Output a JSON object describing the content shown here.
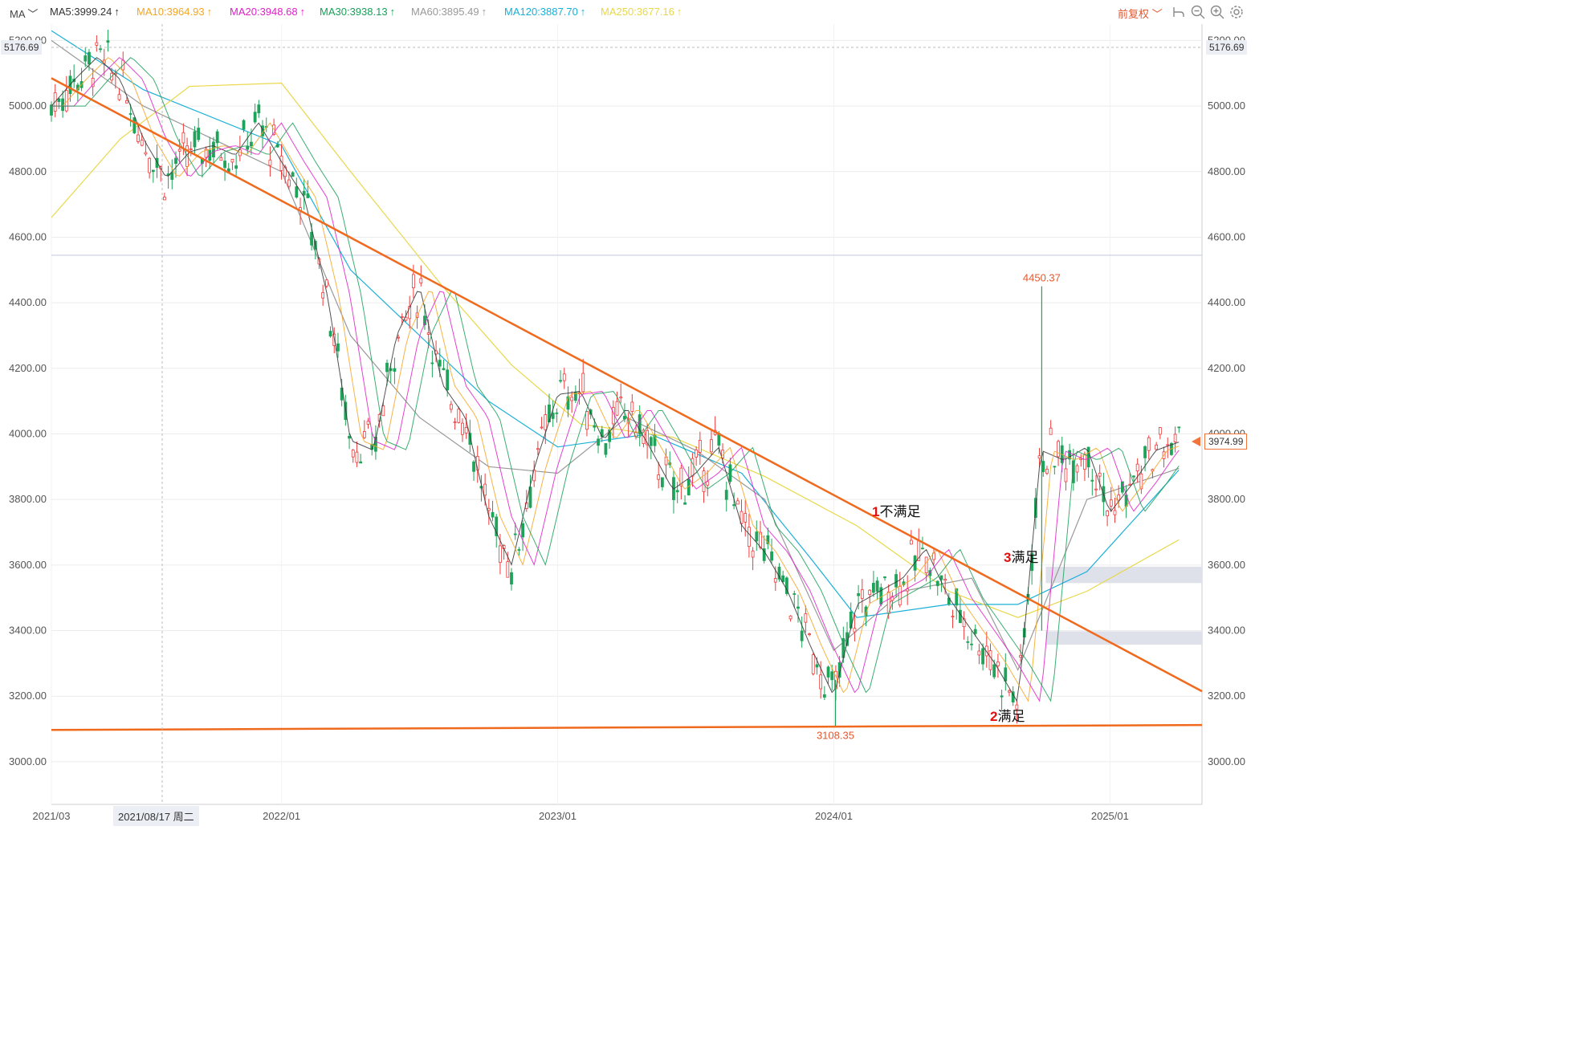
{
  "toolbar": {
    "ma_selector": "MA",
    "adjust_label": "前复权",
    "indicators": [
      {
        "text": "MA5:3999.24",
        "arrow": "↑",
        "color": "#333333"
      },
      {
        "text": "MA10:3964.93",
        "arrow": "↑",
        "color": "#f5a623"
      },
      {
        "text": "MA20:3948.68",
        "arrow": "↑",
        "color": "#e020c8"
      },
      {
        "text": "MA30:3938.13",
        "arrow": "↑",
        "color": "#18a058"
      },
      {
        "text": "MA60:3895.49",
        "arrow": "↑",
        "color": "#999999"
      },
      {
        "text": "MA120:3887.70",
        "arrow": "↑",
        "color": "#1ab0d8"
      },
      {
        "text": "MA250:3677.16",
        "arrow": "↑",
        "color": "#e8d84a"
      }
    ],
    "icons": [
      "undo-icon",
      "zoom-out-icon",
      "zoom-in-icon",
      "settings-icon"
    ]
  },
  "crosshair": {
    "price_label": "5176.69",
    "date_label": "2021/08/17 周二"
  },
  "current_price_label": "3974.99",
  "chart_data": {
    "type": "candlestick",
    "y_axis": {
      "ticks": [
        3000,
        3200,
        3400,
        3600,
        3800,
        4000,
        4200,
        4400,
        4600,
        4800,
        5000,
        5200
      ],
      "tick_labels": [
        "3000.00",
        "3200.00",
        "3400.00",
        "3600.00",
        "3800.00",
        "4000.00",
        "4200.00",
        "4400.00",
        "4600.00",
        "4800.00",
        "5000.00",
        "5200.00"
      ],
      "range": [
        2870,
        5250
      ]
    },
    "x_axis": {
      "tick_labels": [
        "2021/03",
        "2022/01",
        "2023/01",
        "2024/01",
        "2025/01"
      ],
      "range": [
        "2021-03",
        "2025-05"
      ]
    },
    "annotations": {
      "high": {
        "value": 4450.37,
        "label": "4450.37"
      },
      "low": {
        "value": 3108.35,
        "label": "3108.35"
      },
      "texts": [
        {
          "num": "1",
          "text": "不满足"
        },
        {
          "num": "2",
          "text": "满足"
        },
        {
          "num": "3",
          "text": "满足"
        }
      ]
    },
    "trend_lines": [
      {
        "name": "descending-resistance",
        "color": "#f06a1e",
        "points": [
          [
            "2021-03",
            5085
          ],
          [
            "2025-05",
            3215
          ]
        ]
      },
      {
        "name": "horizontal-support",
        "color": "#f06a1e",
        "points": [
          [
            "2021-03",
            3097
          ],
          [
            "2025-05",
            3112
          ]
        ]
      }
    ],
    "zones": [
      {
        "from": 3545,
        "to": 3595,
        "start": "2024-10"
      },
      {
        "from": 3357,
        "to": 3398,
        "start": "2024-10"
      }
    ],
    "reference_line": 4545,
    "close_path": [
      [
        "2021-03",
        5000
      ],
      [
        "2021-04",
        5080
      ],
      [
        "2021-05",
        5150
      ],
      [
        "2021-06",
        5080
      ],
      [
        "2021-07",
        4900
      ],
      [
        "2021-08",
        4780
      ],
      [
        "2021-09",
        4860
      ],
      [
        "2021-10",
        4880
      ],
      [
        "2021-11",
        4850
      ],
      [
        "2021-12",
        4950
      ],
      [
        "2022-01",
        4830
      ],
      [
        "2022-02",
        4720
      ],
      [
        "2022-03",
        4420
      ],
      [
        "2022-04",
        3980
      ],
      [
        "2022-05",
        3950
      ],
      [
        "2022-06",
        4300
      ],
      [
        "2022-07",
        4450
      ],
      [
        "2022-08",
        4150
      ],
      [
        "2022-09",
        4050
      ],
      [
        "2022-10",
        3750
      ],
      [
        "2022-11",
        3600
      ],
      [
        "2022-12",
        3900
      ],
      [
        "2023-01",
        4120
      ],
      [
        "2023-02",
        4130
      ],
      [
        "2023-03",
        3980
      ],
      [
        "2023-04",
        4080
      ],
      [
        "2023-05",
        3960
      ],
      [
        "2023-06",
        3830
      ],
      [
        "2023-07",
        3880
      ],
      [
        "2023-08",
        3960
      ],
      [
        "2023-09",
        3720
      ],
      [
        "2023-10",
        3640
      ],
      [
        "2023-11",
        3520
      ],
      [
        "2023-12",
        3350
      ],
      [
        "2024-01",
        3200
      ],
      [
        "2024-02",
        3480
      ],
      [
        "2024-03",
        3520
      ],
      [
        "2024-04",
        3560
      ],
      [
        "2024-05",
        3650
      ],
      [
        "2024-06",
        3500
      ],
      [
        "2024-07",
        3400
      ],
      [
        "2024-08",
        3300
      ],
      [
        "2024-09",
        3180
      ],
      [
        "2024-10",
        3950
      ],
      [
        "2024-11",
        3920
      ],
      [
        "2024-12",
        3960
      ],
      [
        "2025-01",
        3760
      ],
      [
        "2025-02",
        3850
      ],
      [
        "2025-03",
        3950
      ],
      [
        "2025-04",
        3975
      ]
    ],
    "moving_averages": [
      {
        "name": "MA120",
        "color": "#1ab0d8",
        "points": [
          [
            "2021-03",
            5230
          ],
          [
            "2021-07",
            5050
          ],
          [
            "2022-01",
            4880
          ],
          [
            "2022-04",
            4500
          ],
          [
            "2022-07",
            4300
          ],
          [
            "2022-10",
            4100
          ],
          [
            "2023-01",
            3960
          ],
          [
            "2023-05",
            4000
          ],
          [
            "2023-09",
            3880
          ],
          [
            "2023-12",
            3620
          ],
          [
            "2024-02",
            3440
          ],
          [
            "2024-06",
            3480
          ],
          [
            "2024-09",
            3480
          ],
          [
            "2024-12",
            3580
          ],
          [
            "2025-04",
            3890
          ]
        ]
      },
      {
        "name": "MA250",
        "color": "#e8d84a",
        "points": [
          [
            "2021-03",
            4660
          ],
          [
            "2021-06",
            4900
          ],
          [
            "2021-09",
            5060
          ],
          [
            "2022-01",
            5070
          ],
          [
            "2022-04",
            4800
          ],
          [
            "2022-08",
            4450
          ],
          [
            "2022-11",
            4210
          ],
          [
            "2023-02",
            4030
          ],
          [
            "2023-06",
            3990
          ],
          [
            "2023-10",
            3870
          ],
          [
            "2024-02",
            3720
          ],
          [
            "2024-06",
            3520
          ],
          [
            "2024-09",
            3440
          ],
          [
            "2024-12",
            3520
          ],
          [
            "2025-04",
            3677
          ]
        ]
      },
      {
        "name": "MA60",
        "color": "#999999",
        "points": [
          [
            "2021-03",
            5200
          ],
          [
            "2021-07",
            5000
          ],
          [
            "2022-01",
            4800
          ],
          [
            "2022-04",
            4300
          ],
          [
            "2022-07",
            4050
          ],
          [
            "2022-10",
            3900
          ],
          [
            "2023-01",
            3880
          ],
          [
            "2023-04",
            4050
          ],
          [
            "2023-07",
            3950
          ],
          [
            "2023-10",
            3800
          ],
          [
            "2024-01",
            3340
          ],
          [
            "2024-04",
            3520
          ],
          [
            "2024-07",
            3560
          ],
          [
            "2024-09",
            3280
          ],
          [
            "2024-12",
            3800
          ],
          [
            "2025-04",
            3895
          ]
        ]
      }
    ]
  }
}
